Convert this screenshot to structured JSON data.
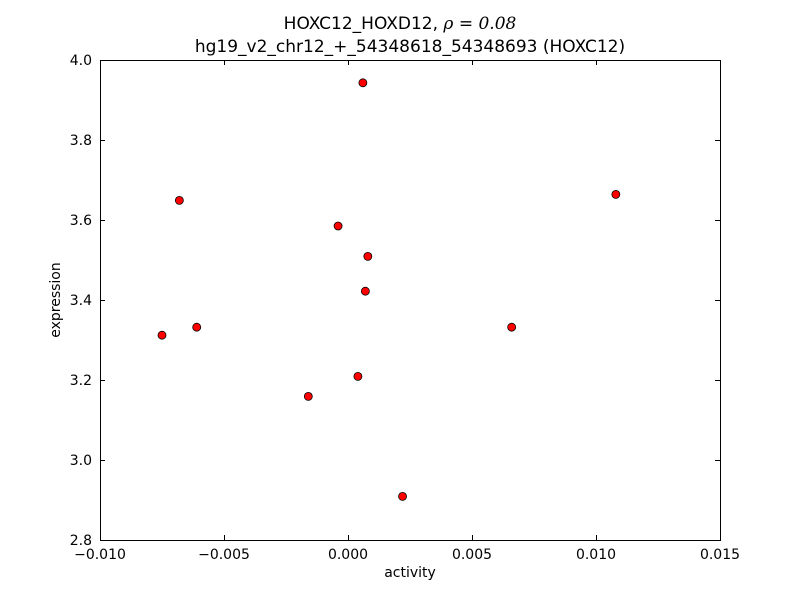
{
  "chart_data": {
    "type": "scatter",
    "title_line1_prefix": "HOXC12_HOXD12, ",
    "title_line1_rho": "ρ = 0.08",
    "title_line2": "hg19_v2_chr12_+_54348618_54348693 (HOXC12)",
    "xlabel": "activity",
    "ylabel": "expression",
    "xlim": [
      -0.01,
      0.015
    ],
    "ylim": [
      2.8,
      4.0
    ],
    "xticks": [
      -0.01,
      -0.005,
      0.0,
      0.005,
      0.01,
      0.015
    ],
    "xtick_labels": [
      "−0.010",
      "−0.005",
      "0.000",
      "0.005",
      "0.010",
      "0.015"
    ],
    "yticks": [
      2.8,
      3.0,
      3.2,
      3.4,
      3.6,
      3.8,
      4.0
    ],
    "ytick_labels": [
      "2.8",
      "3.0",
      "3.2",
      "3.4",
      "3.6",
      "3.8",
      "4.0"
    ],
    "grid": false,
    "marker_color": "#ff0000",
    "marker_edge_color": "#000000",
    "points": [
      {
        "x": -0.0075,
        "y": 3.312
      },
      {
        "x": -0.0068,
        "y": 3.649
      },
      {
        "x": -0.0061,
        "y": 3.332
      },
      {
        "x": -0.0016,
        "y": 3.159
      },
      {
        "x": -0.0004,
        "y": 3.585
      },
      {
        "x": 0.0004,
        "y": 3.209
      },
      {
        "x": 0.0006,
        "y": 3.943
      },
      {
        "x": 0.0007,
        "y": 3.422
      },
      {
        "x": 0.0008,
        "y": 3.509
      },
      {
        "x": 0.0022,
        "y": 2.909
      },
      {
        "x": 0.0066,
        "y": 3.332
      },
      {
        "x": 0.0108,
        "y": 3.664
      }
    ]
  }
}
